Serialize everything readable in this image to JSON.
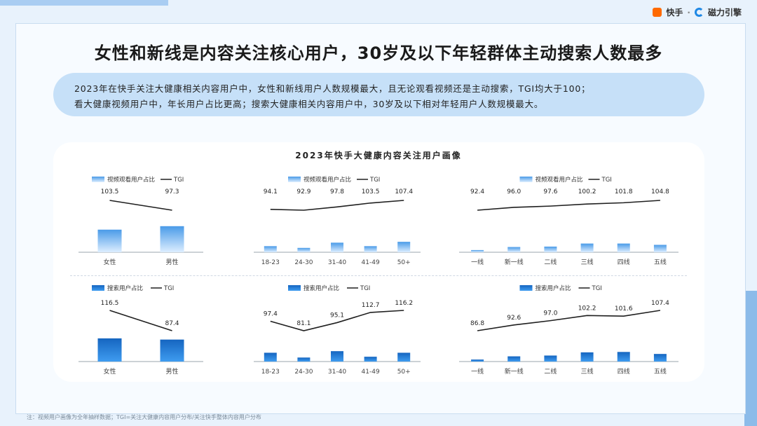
{
  "brand": {
    "kuaishou": "快手",
    "sep": "·",
    "cili": "磁力引擎"
  },
  "title": "女性和新线是内容关注核心用户，30岁及以下年轻群体主动搜索人数最多",
  "summary": {
    "line1": "2023年在快手关注大健康相关内容用户中，女性和新线用户人数规模最大，且无论观看视频还是主动搜索，TGI均大于100；",
    "line2": "看大健康视频用户中，年长用户占比更高；搜索大健康相关内容用户中，30岁及以下相对年轻用户人数规模最大。"
  },
  "panel_title": "2023年快手大健康内容关注用户画像",
  "footnote": "注：视频用户画像为全年抽样数据；TGI=关注大健康内容用户分布/关注快手整体内容用户分布",
  "colors": {
    "bar_video_top": "#4a9be8",
    "bar_video_bottom": "#ddeeff",
    "bar_search_top": "#1565c0",
    "bar_search_bottom": "#3f9cf0",
    "tgi_line": "#1f1f1f"
  },
  "chart_data": [
    {
      "type": "bar",
      "row": "video",
      "group": "gender",
      "legend": [
        "视频观看用户占比",
        "TGI"
      ],
      "categories": [
        "女性",
        "男性"
      ],
      "series": [
        {
          "name": "视频观看用户占比",
          "values": [
            0.52,
            0.6
          ]
        },
        {
          "name": "TGI",
          "values": [
            103.5,
            97.3
          ]
        }
      ]
    },
    {
      "type": "bar",
      "row": "video",
      "group": "age",
      "legend": [
        "视频观看用户占比",
        "TGI"
      ],
      "categories": [
        "18-23",
        "24-30",
        "31-40",
        "41-49",
        "50+"
      ],
      "series": [
        {
          "name": "视频观看用户占比",
          "values": [
            0.14,
            0.1,
            0.22,
            0.14,
            0.24
          ]
        },
        {
          "name": "TGI",
          "values": [
            94.1,
            92.9,
            97.8,
            103.5,
            107.4
          ]
        }
      ]
    },
    {
      "type": "bar",
      "row": "video",
      "group": "city",
      "legend": [
        "视频观看用户占比",
        "TGI"
      ],
      "categories": [
        "一线",
        "新一线",
        "二线",
        "三线",
        "四线",
        "五线"
      ],
      "series": [
        {
          "name": "视频观看用户占比",
          "values": [
            0.05,
            0.12,
            0.13,
            0.2,
            0.2,
            0.17
          ]
        },
        {
          "name": "TGI",
          "values": [
            92.4,
            96.0,
            97.6,
            100.2,
            101.8,
            104.8
          ]
        }
      ]
    },
    {
      "type": "bar",
      "row": "search",
      "group": "gender",
      "legend": [
        "搜索用户占比",
        "TGI"
      ],
      "categories": [
        "女性",
        "男性"
      ],
      "series": [
        {
          "name": "搜索用户占比",
          "values": [
            0.58,
            0.55
          ]
        },
        {
          "name": "TGI",
          "values": [
            116.5,
            87.4
          ]
        }
      ]
    },
    {
      "type": "bar",
      "row": "search",
      "group": "age",
      "legend": [
        "搜索用户占比",
        "TGI"
      ],
      "categories": [
        "18-23",
        "24-30",
        "31-40",
        "41-49",
        "50+"
      ],
      "series": [
        {
          "name": "搜索用户占比",
          "values": [
            0.22,
            0.1,
            0.26,
            0.12,
            0.22
          ]
        },
        {
          "name": "TGI",
          "values": [
            97.4,
            81.1,
            95.1,
            112.7,
            116.2
          ]
        }
      ]
    },
    {
      "type": "bar",
      "row": "search",
      "group": "city",
      "legend": [
        "搜索用户占比",
        "TGI"
      ],
      "categories": [
        "一线",
        "新一线",
        "二线",
        "三线",
        "四线",
        "五线"
      ],
      "series": [
        {
          "name": "搜索用户占比",
          "values": [
            0.05,
            0.13,
            0.15,
            0.23,
            0.24,
            0.19
          ]
        },
        {
          "name": "TGI",
          "values": [
            86.8,
            92.6,
            97.0,
            102.2,
            101.6,
            107.4
          ]
        }
      ]
    }
  ]
}
